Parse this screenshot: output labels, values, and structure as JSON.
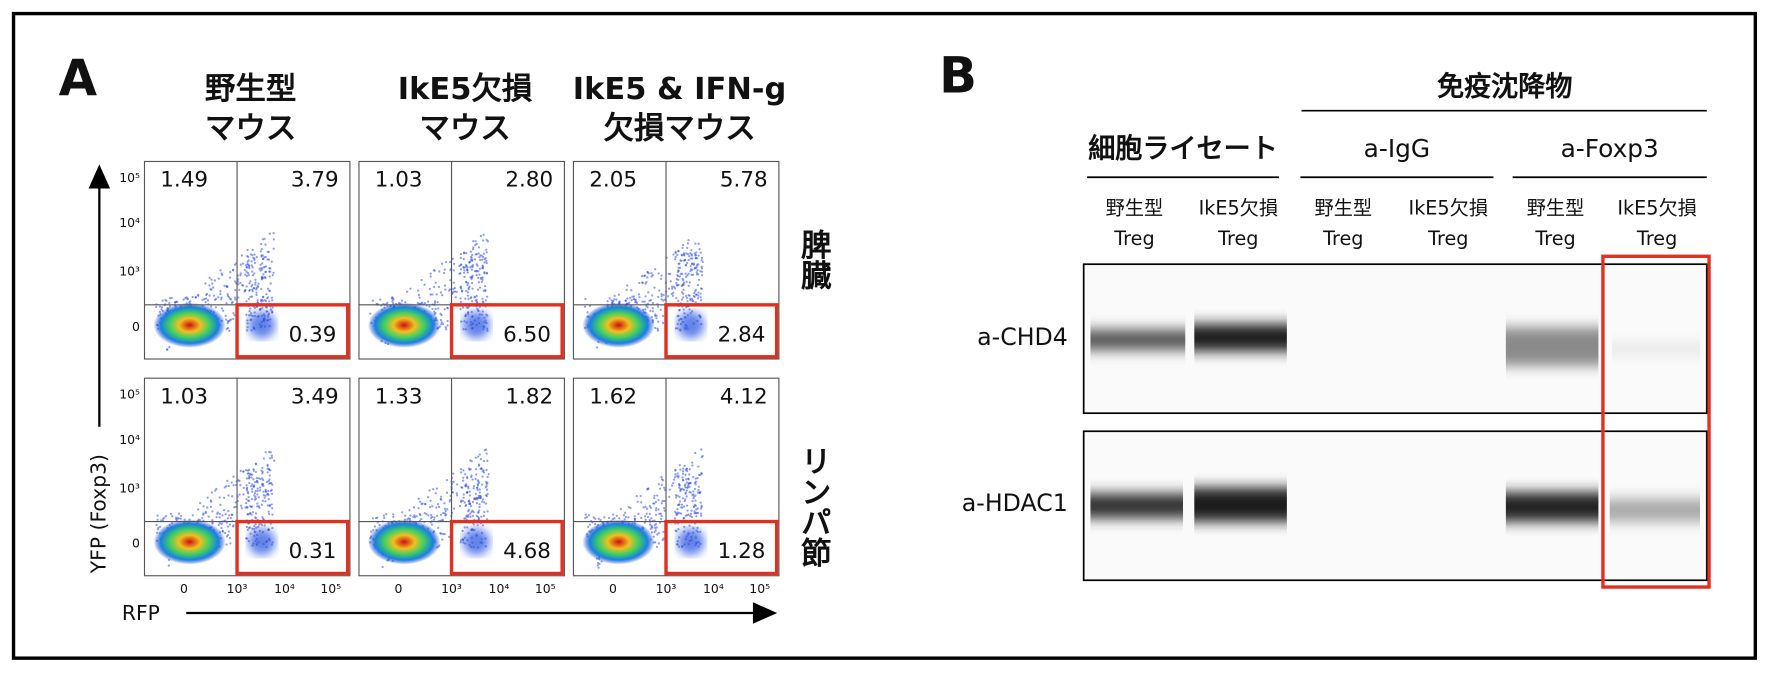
{
  "panel_a": {
    "label": "A",
    "columns": [
      [
        "野生型",
        "マウス"
      ],
      [
        "IkE5欠損",
        "マウス"
      ],
      [
        "IkE5 & IFN-g",
        "欠損マウス"
      ]
    ],
    "rows": [
      "脾臓",
      "リンパ節"
    ],
    "plots": [
      [
        {
          "ul": "1.49",
          "ur": "3.79",
          "lr": "0.39"
        },
        {
          "ul": "1.03",
          "ur": "2.80",
          "lr": "6.50"
        },
        {
          "ul": "2.05",
          "ur": "5.78",
          "lr": "2.84"
        }
      ],
      [
        {
          "ul": "1.03",
          "ur": "3.49",
          "lr": "0.31"
        },
        {
          "ul": "1.33",
          "ur": "1.82",
          "lr": "4.68"
        },
        {
          "ul": "1.62",
          "ur": "4.12",
          "lr": "1.28"
        }
      ]
    ],
    "y_axis_label": "YFP (Foxp3)",
    "x_axis_label": "RFP",
    "y_ticks": [
      "10⁵",
      "10⁴",
      "10³",
      "0"
    ],
    "x_ticks": [
      "0",
      "10³",
      "10⁴",
      "10⁵"
    ]
  },
  "panel_b": {
    "label": "B",
    "header": "免疫沈降物",
    "groups": [
      "細胞ライセート",
      "a-IgG",
      "a-Foxp3"
    ],
    "lanes": [
      [
        "野生型",
        "Treg"
      ],
      [
        "IkE5欠損",
        "Treg"
      ],
      [
        "野生型",
        "Treg"
      ],
      [
        "IkE5欠損",
        "Treg"
      ],
      [
        "野生型",
        "Treg"
      ],
      [
        "IkE5欠損",
        "Treg"
      ]
    ],
    "rows": [
      "a-CHD4",
      "a-HDAC1"
    ]
  }
}
